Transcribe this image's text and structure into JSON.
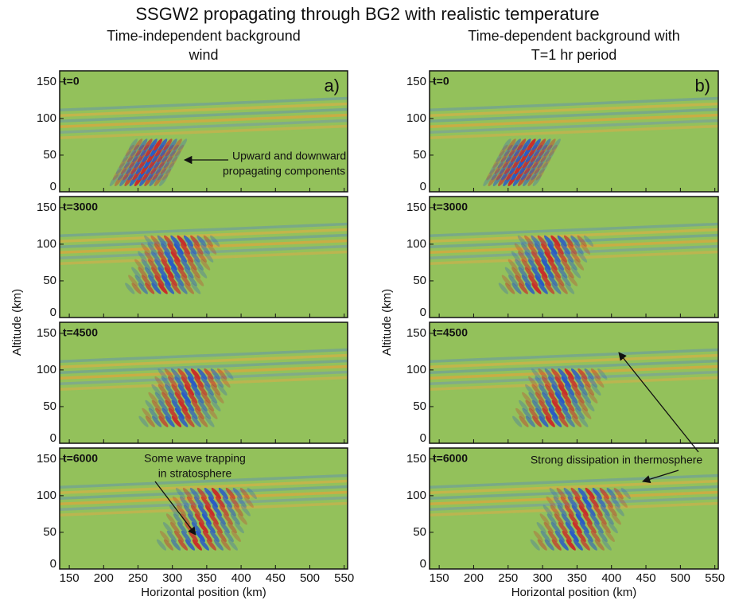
{
  "title": "SSGW2 propagating through BG2 with realistic temperature",
  "x_axis": {
    "label": "Horizontal position (km)",
    "lim": [
      136,
      555
    ],
    "ticks": [
      150,
      200,
      250,
      300,
      350,
      400,
      450,
      500,
      550
    ]
  },
  "y_axis": {
    "label": "Altitude (km)",
    "lim": [
      0,
      165
    ],
    "ticks": [
      0,
      50,
      100,
      150
    ]
  },
  "columns": [
    {
      "heading": [
        "Time-independent background",
        "wind"
      ],
      "panel_label": "a)",
      "panels": [
        {
          "time": "t=0"
        },
        {
          "time": "t=3000"
        },
        {
          "time": "t=4500"
        },
        {
          "time": "t=6000"
        }
      ]
    },
    {
      "heading": [
        "Time-dependent background with",
        "T=1 hr period"
      ],
      "panel_label": "b)",
      "panels": [
        {
          "time": "t=0"
        },
        {
          "time": "t=3000"
        },
        {
          "time": "t=4500"
        },
        {
          "time": "t=6000"
        }
      ]
    }
  ],
  "annotations": [
    {
      "lines": [
        "Upward and downward",
        "propagating components"
      ]
    },
    {
      "lines": [
        "Some wave trapping",
        "in stratosphere"
      ]
    },
    {
      "lines": [
        "Strong dissipation in thermosphere"
      ]
    }
  ]
}
